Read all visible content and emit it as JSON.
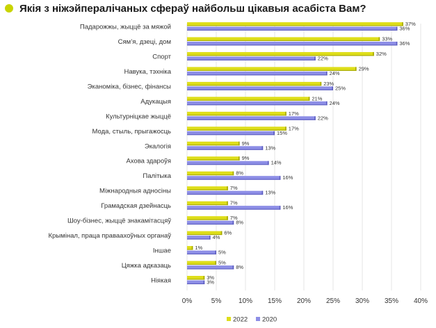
{
  "colors": {
    "bullet": "#c9d400",
    "series_2022": "#dede1a",
    "series_2022_shade": "#a5a800",
    "series_2020": "#8d8ee6",
    "series_2020_shade": "#5c5dc0",
    "grid": "#d9d9d9"
  },
  "chart_data": {
    "type": "bar",
    "orientation": "horizontal",
    "title": "Якія з ніжэйпералічаных сфераў найбольш цікавыя асабіста Вам?",
    "categories": [
      "Падарожжы, жыццё за мяжой",
      "Сям’я, дзеці, дом",
      "Спорт",
      "Навука, тэхніка",
      "Эканоміка, бізнес, фінансы",
      "Адукацыя",
      "Культурніцкае жыццё",
      "Мода, стыль, прыгажосць",
      "Экалогія",
      "Ахова здароўя",
      "Палітыка",
      "Міжнародныя адносіны",
      "Грамадская дзейнасць",
      "Шоу-бізнес, жыццё знакамітасцяў",
      "Крымінал, праца праваахоўных органаў",
      "Іншае",
      "Цяжка адказаць",
      "Ніякая"
    ],
    "series": [
      {
        "name": "2022",
        "values": [
          37,
          33,
          32,
          29,
          23,
          21,
          17,
          17,
          9,
          9,
          8,
          7,
          7,
          7,
          6,
          1,
          5,
          3
        ],
        "labels": [
          "37%",
          "33%",
          "32%",
          "29%",
          "23%",
          "21%",
          "17%",
          "17%",
          "9%",
          "9%",
          "8%",
          "7%",
          "7%",
          "7%",
          "6%",
          "1%",
          "5%",
          "3%"
        ]
      },
      {
        "name": "2020",
        "values": [
          36,
          36,
          22,
          24,
          25,
          24,
          22,
          15,
          13,
          14,
          16,
          13,
          16,
          8,
          4,
          5,
          8,
          3
        ],
        "labels": [
          "36%",
          "36%",
          "22%",
          "24%",
          "25%",
          "24%",
          "22%",
          "15%",
          "13%",
          "14%",
          "16%",
          "13%",
          "16%",
          "8%",
          "4%",
          "5%",
          "8%",
          "3%"
        ]
      }
    ],
    "xlim": [
      0,
      40
    ],
    "xticks": [
      "0%",
      "5%",
      "10%",
      "15%",
      "20%",
      "25%",
      "30%",
      "35%",
      "40%"
    ],
    "grid": true,
    "legend": [
      "2022",
      "2020"
    ],
    "legend_position": "bottom-center"
  }
}
